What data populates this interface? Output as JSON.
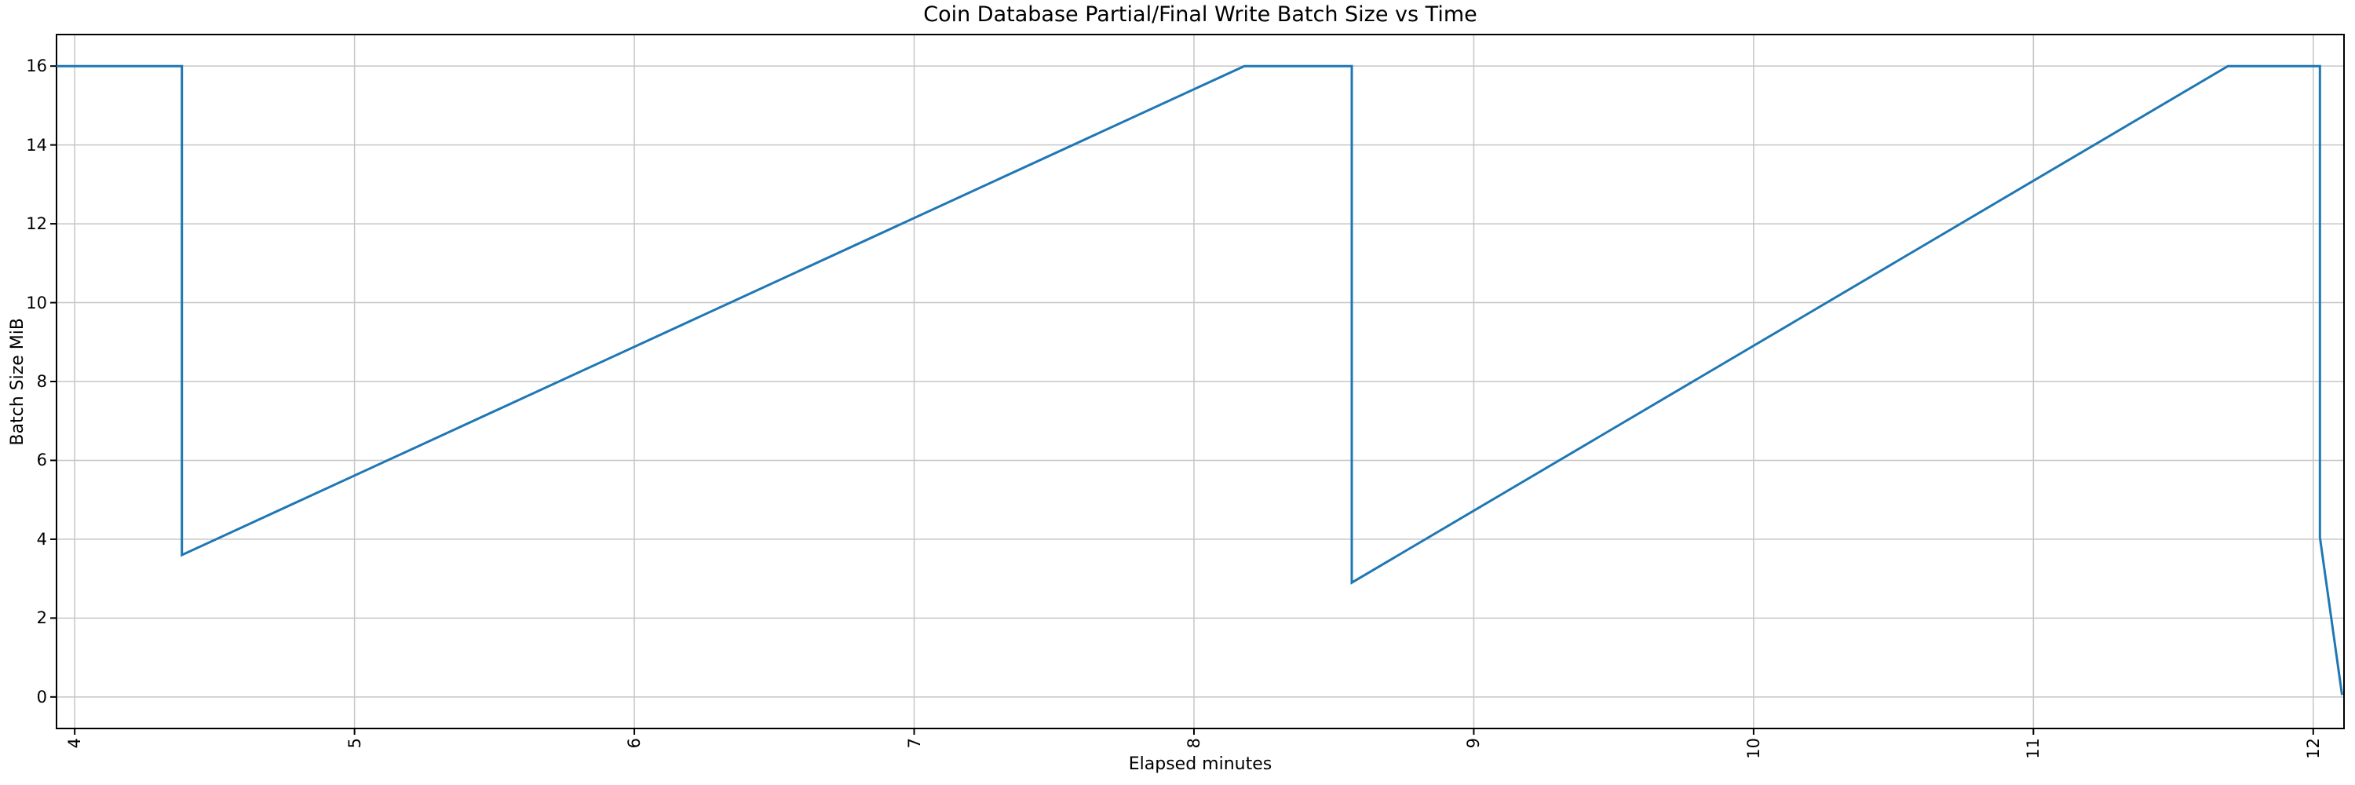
{
  "chart_data": {
    "type": "line",
    "title": "Coin Database Partial/Final Write Batch Size vs Time",
    "xlabel": "Elapsed minutes",
    "ylabel": "Batch Size MiB",
    "xlim": [
      3.935,
      12.11
    ],
    "ylim": [
      -0.8,
      16.8
    ],
    "xticks": [
      4,
      5,
      6,
      7,
      8,
      9,
      10,
      11,
      12
    ],
    "yticks": [
      0,
      2,
      4,
      6,
      8,
      10,
      12,
      14,
      16
    ],
    "grid": true,
    "legend": "none",
    "colors": {
      "line": "#1f77b4",
      "grid": "#c6c6c6",
      "spine": "#000000",
      "background": "#ffffff",
      "text": "#000000"
    },
    "series": [
      {
        "points": [
          [
            3.935,
            16.0
          ],
          [
            4.383,
            16.0
          ],
          [
            4.383,
            3.6
          ],
          [
            8.18,
            16.0
          ],
          [
            8.564,
            16.0
          ],
          [
            8.564,
            2.9
          ],
          [
            11.695,
            16.0
          ],
          [
            12.024,
            16.0
          ],
          [
            12.024,
            4.05
          ],
          [
            12.103,
            0.05
          ]
        ]
      }
    ]
  }
}
